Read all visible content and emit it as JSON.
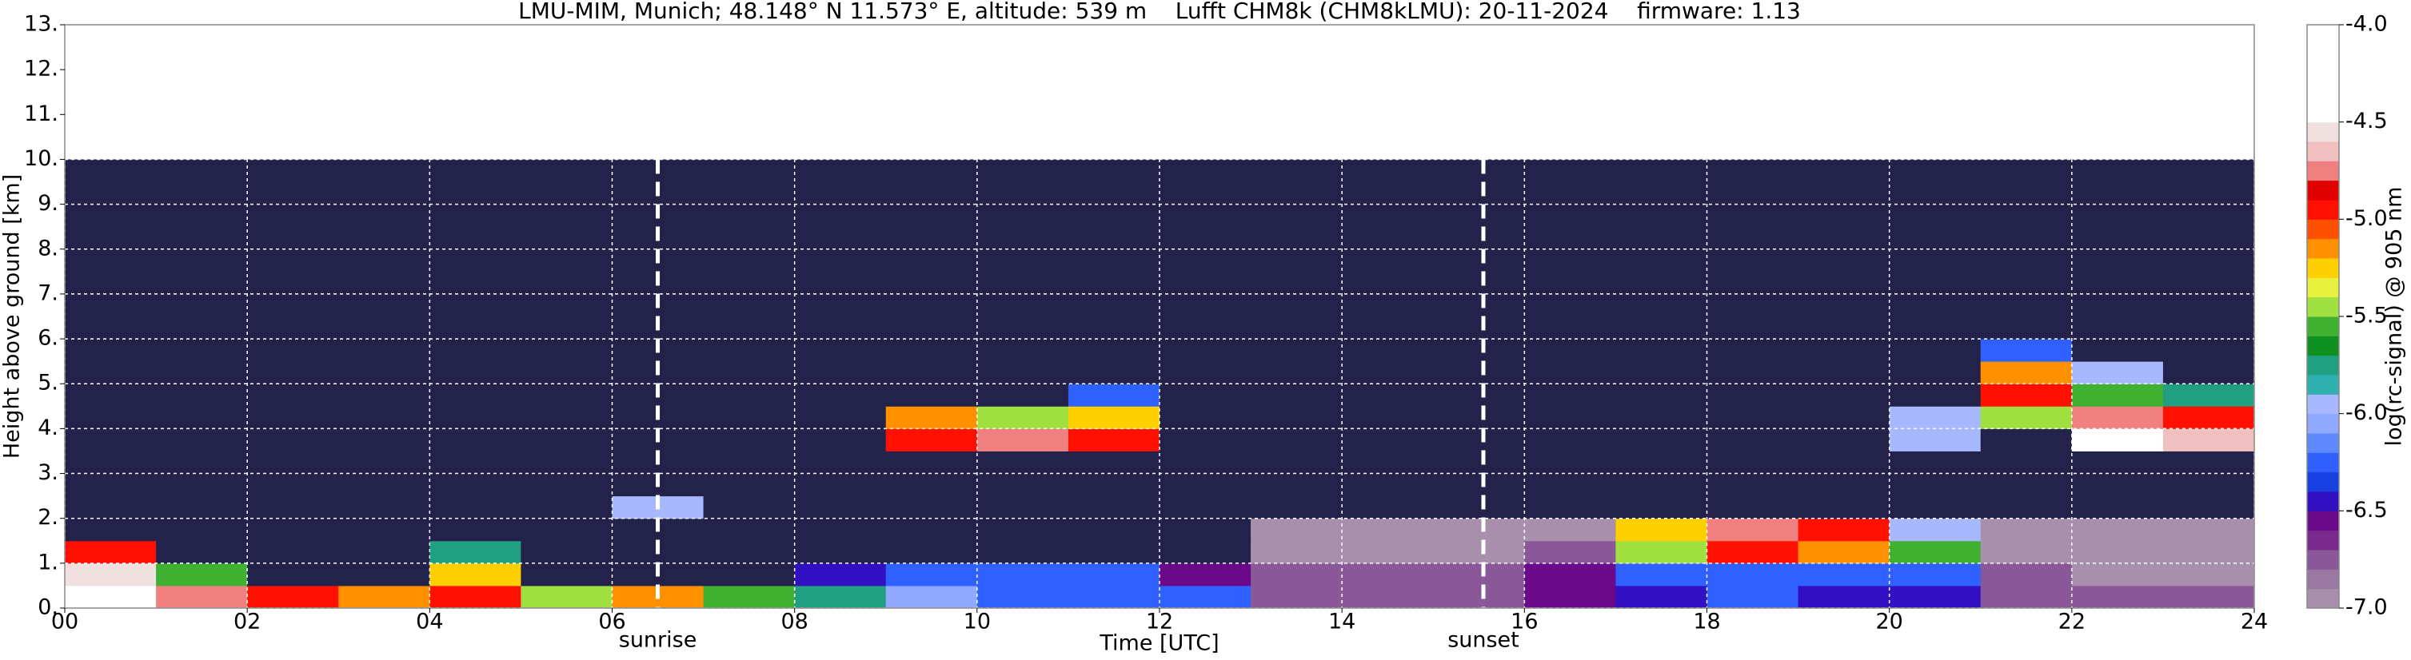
{
  "chart_data": {
    "type": "heatmap",
    "title": "LMU-MIM, Munich; 48.148° N 11.573° E, altitude: 539 m    Lufft CHM8k (CHM8kLMU): 20-11-2024    firmware: 1.13",
    "x_label": "Time [UTC]",
    "y_label": "Height above ground [km]",
    "colorbar_label": "log(rc-signal) @ 905 nm",
    "xlim": [
      0,
      24
    ],
    "ylim": [
      0,
      13
    ],
    "xticks": [
      {
        "value": 0,
        "label": "00"
      },
      {
        "value": 2,
        "label": "02"
      },
      {
        "value": 4,
        "label": "04"
      },
      {
        "value": 6,
        "label": "06"
      },
      {
        "value": 8,
        "label": "08"
      },
      10,
      12,
      14,
      16,
      18,
      20,
      22,
      24
    ],
    "yticks": [
      {
        "value": 0,
        "label": "0."
      },
      {
        "value": 1,
        "label": "1."
      },
      {
        "value": 2,
        "label": "2."
      },
      {
        "value": 3,
        "label": "3."
      },
      {
        "value": 4,
        "label": "4."
      },
      {
        "value": 5,
        "label": "5."
      },
      {
        "value": 6,
        "label": "6."
      },
      {
        "value": 7,
        "label": "7."
      },
      {
        "value": 8,
        "label": "8."
      },
      {
        "value": 9,
        "label": "9."
      },
      {
        "value": 10,
        "label": "10."
      },
      {
        "value": 11,
        "label": "11."
      },
      {
        "value": 12,
        "label": "12."
      },
      {
        "value": 13,
        "label": "13."
      }
    ],
    "grid": true,
    "zlim": [
      -7,
      -4
    ],
    "zticks": [
      {
        "value": -7,
        "label": "-7.0"
      },
      {
        "value": -6.5,
        "label": "-6.5"
      },
      {
        "value": -6,
        "label": "-6.0"
      },
      {
        "value": -5.5,
        "label": "-5.5"
      },
      {
        "value": -5,
        "label": "-5.0"
      },
      {
        "value": -4.5,
        "label": "-4.5"
      },
      {
        "value": -4,
        "label": "-4.0"
      }
    ],
    "colors": [
      "#a890ac",
      "#9a78a2",
      "#8a5898",
      "#7a2a8c",
      "#6a0a8a",
      "#3010c0",
      "#1840e0",
      "#3060ff",
      "#6088ff",
      "#90a8ff",
      "#a8b8ff",
      "#30b0b0",
      "#20a080",
      "#109020",
      "#40b030",
      "#a0e040",
      "#e8f040",
      "#ffd000",
      "#ff9000",
      "#ff5000",
      "#ff1000",
      "#e00000",
      "#f08080",
      "#f0c0c0",
      "#f0e0e0",
      "#ffffff",
      "#ffffff",
      "#ffffff",
      "#ffffff",
      "#ffffff"
    ],
    "under_color": "#22224a",
    "xbins": [
      0,
      1,
      2,
      3,
      4,
      5,
      6,
      7,
      8,
      9,
      10,
      11,
      12,
      13,
      14,
      15,
      16,
      17,
      18,
      19,
      20,
      21,
      22,
      23,
      24
    ],
    "ybins": [
      0,
      0.5,
      1,
      1.5,
      2,
      2.5,
      3,
      3.5,
      4,
      4.5,
      5,
      5.5,
      6,
      6.5,
      7,
      7.5,
      8,
      8.5,
      9,
      9.5,
      10
    ],
    "z": [
      [
        -4.2,
        -4.8,
        -5.0,
        -5.2,
        -4.9,
        -5.4,
        -5.2,
        -5.6,
        -5.8,
        -6.1,
        -6.2,
        -6.2,
        -6.3,
        -6.7,
        -6.7,
        -6.7,
        -6.6,
        -6.5,
        -6.3,
        -6.4,
        -6.5,
        -6.7,
        -6.7,
        -6.7
      ],
      [
        -4.6,
        -5.6,
        -7.5,
        -7.5,
        -5.3,
        -7.5,
        -7.5,
        -7.5,
        -6.5,
        -6.3,
        -6.2,
        -6.3,
        -6.6,
        -6.8,
        -6.8,
        -6.8,
        -6.6,
        -6.3,
        -6.2,
        -6.3,
        -6.3,
        -6.8,
        -6.9,
        -6.9
      ],
      [
        -5.0,
        -7.5,
        -7.5,
        -7.5,
        -5.8,
        -7.5,
        -7.5,
        -7.5,
        -7.5,
        -7.5,
        -7.5,
        -7.5,
        -7.5,
        -6.9,
        -6.9,
        -6.9,
        -6.8,
        -5.4,
        -5.0,
        -5.2,
        -5.6,
        -6.9,
        -6.9,
        -6.9
      ],
      [
        -7.5,
        -7.5,
        -7.5,
        -7.5,
        -7.5,
        -7.5,
        -7.5,
        -7.5,
        -7.5,
        -7.5,
        -7.5,
        -7.5,
        -7.5,
        -7.0,
        -7.0,
        -7.0,
        -7.0,
        -5.3,
        -4.8,
        -5.0,
        -6.0,
        -7.0,
        -7.0,
        -7.0
      ],
      [
        -7.5,
        -7.5,
        -7.5,
        -7.5,
        -7.5,
        -7.5,
        -6.0,
        -7.5,
        -7.5,
        -7.5,
        -7.5,
        -7.5,
        -7.5,
        -7.5,
        -7.5,
        -7.5,
        -7.5,
        -7.5,
        -7.5,
        -7.5,
        -7.5,
        -7.5,
        -7.5,
        -7.5
      ],
      [
        -7.5,
        -7.5,
        -7.5,
        -7.5,
        -7.5,
        -7.5,
        -7.5,
        -7.5,
        -7.5,
        -7.5,
        -7.5,
        -7.5,
        -7.5,
        -7.5,
        -7.5,
        -7.5,
        -7.5,
        -7.5,
        -7.5,
        -7.5,
        -7.5,
        -7.5,
        -7.5,
        -7.5
      ],
      [
        -7.5,
        -7.5,
        -7.5,
        -7.5,
        -7.5,
        -7.5,
        -7.5,
        -7.5,
        -7.5,
        -7.5,
        -7.5,
        -7.5,
        -7.5,
        -7.5,
        -7.5,
        -7.5,
        -7.5,
        -7.5,
        -7.5,
        -7.5,
        -7.5,
        -7.5,
        -7.5,
        -7.5
      ],
      [
        -7.5,
        -7.5,
        -7.5,
        -7.5,
        -7.5,
        -7.5,
        -7.5,
        -7.5,
        -7.5,
        -5.0,
        -4.8,
        -5.0,
        -7.5,
        -7.5,
        -7.5,
        -7.5,
        -7.5,
        -7.5,
        -7.5,
        -7.5,
        -6.0,
        -7.5,
        -4.5,
        -4.7
      ],
      [
        -7.5,
        -7.5,
        -7.5,
        -7.5,
        -7.5,
        -7.5,
        -7.5,
        -7.5,
        -7.5,
        -5.2,
        -5.4,
        -5.3,
        -7.5,
        -7.5,
        -7.5,
        -7.5,
        -7.5,
        -7.5,
        -7.5,
        -7.5,
        -6.0,
        -5.5,
        -4.8,
        -5.0
      ],
      [
        -7.5,
        -7.5,
        -7.5,
        -7.5,
        -7.5,
        -7.5,
        -7.5,
        -7.5,
        -7.5,
        -7.5,
        -7.5,
        -6.2,
        -7.5,
        -7.5,
        -7.5,
        -7.5,
        -7.5,
        -7.5,
        -7.5,
        -7.5,
        -7.5,
        -5.0,
        -5.6,
        -5.8
      ],
      [
        -7.5,
        -7.5,
        -7.5,
        -7.5,
        -7.5,
        -7.5,
        -7.5,
        -7.5,
        -7.5,
        -7.5,
        -7.5,
        -7.5,
        -7.5,
        -7.5,
        -7.5,
        -7.5,
        -7.5,
        -7.5,
        -7.5,
        -7.5,
        -7.5,
        -5.2,
        -6.0,
        -7.5
      ],
      [
        -7.5,
        -7.5,
        -7.5,
        -7.5,
        -7.5,
        -7.5,
        -7.5,
        -7.5,
        -7.5,
        -7.5,
        -7.5,
        -7.5,
        -7.5,
        -7.5,
        -7.5,
        -7.5,
        -7.5,
        -7.5,
        -7.5,
        -7.5,
        -7.5,
        -6.3,
        -7.5,
        -7.5
      ],
      [
        -7.5,
        -7.5,
        -7.5,
        -7.5,
        -7.5,
        -7.5,
        -7.5,
        -7.5,
        -7.5,
        -7.5,
        -7.5,
        -7.5,
        -7.5,
        -7.5,
        -7.5,
        -7.5,
        -7.5,
        -7.5,
        -7.5,
        -7.5,
        -7.5,
        -7.5,
        -7.5,
        -7.5
      ],
      [
        -7.5,
        -7.5,
        -7.5,
        -7.5,
        -7.5,
        -7.5,
        -7.5,
        -7.5,
        -7.5,
        -7.5,
        -7.5,
        -7.5,
        -7.5,
        -7.5,
        -7.5,
        -7.5,
        -7.5,
        -7.5,
        -7.5,
        -7.5,
        -7.5,
        -7.5,
        -7.5,
        -7.5
      ],
      [
        -7.5,
        -7.5,
        -7.5,
        -7.5,
        -7.5,
        -7.5,
        -7.5,
        -7.5,
        -7.5,
        -7.5,
        -7.5,
        -7.5,
        -7.5,
        -7.5,
        -7.5,
        -7.5,
        -7.5,
        -7.5,
        -7.5,
        -7.5,
        -7.5,
        -7.5,
        -7.5,
        -7.5
      ],
      [
        -7.5,
        -7.5,
        -7.5,
        -7.5,
        -7.5,
        -7.5,
        -7.5,
        -7.5,
        -7.5,
        -7.5,
        -7.5,
        -7.5,
        -7.5,
        -7.5,
        -7.5,
        -7.5,
        -7.5,
        -7.5,
        -7.5,
        -7.5,
        -7.5,
        -7.5,
        -7.5,
        -7.5
      ],
      [
        -7.5,
        -7.5,
        -7.5,
        -7.5,
        -7.5,
        -7.5,
        -7.5,
        -7.5,
        -7.5,
        -7.5,
        -7.5,
        -7.5,
        -7.5,
        -7.5,
        -7.5,
        -7.5,
        -7.5,
        -7.5,
        -7.5,
        -7.5,
        -7.5,
        -7.5,
        -7.5,
        -7.5
      ],
      [
        -7.5,
        -7.5,
        -7.5,
        -7.5,
        -7.5,
        -7.5,
        -7.5,
        -7.5,
        -7.5,
        -7.5,
        -7.5,
        -7.5,
        -7.5,
        -7.5,
        -7.5,
        -7.5,
        -7.5,
        -7.5,
        -7.5,
        -7.5,
        -7.5,
        -7.5,
        -7.5,
        -7.5
      ],
      [
        -7.5,
        -7.5,
        -7.5,
        -7.5,
        -7.5,
        -7.5,
        -7.5,
        -7.5,
        -7.5,
        -7.5,
        -7.5,
        -7.5,
        -7.5,
        -7.5,
        -7.5,
        -7.5,
        -7.5,
        -7.5,
        -7.5,
        -7.5,
        -7.5,
        -7.5,
        -7.5,
        -7.5
      ],
      [
        -7.5,
        -7.5,
        -7.5,
        -7.5,
        -7.5,
        -7.5,
        -7.5,
        -7.5,
        -7.5,
        -7.5,
        -7.5,
        -7.5,
        -7.5,
        -7.5,
        -7.5,
        -7.5,
        -7.5,
        -7.5,
        -7.5,
        -7.5,
        -7.5,
        -7.5,
        -7.5,
        -7.5
      ]
    ],
    "annotations": [
      {
        "x": 6.5,
        "label": "sunrise"
      },
      {
        "x": 15.55,
        "label": "sunset"
      }
    ]
  }
}
